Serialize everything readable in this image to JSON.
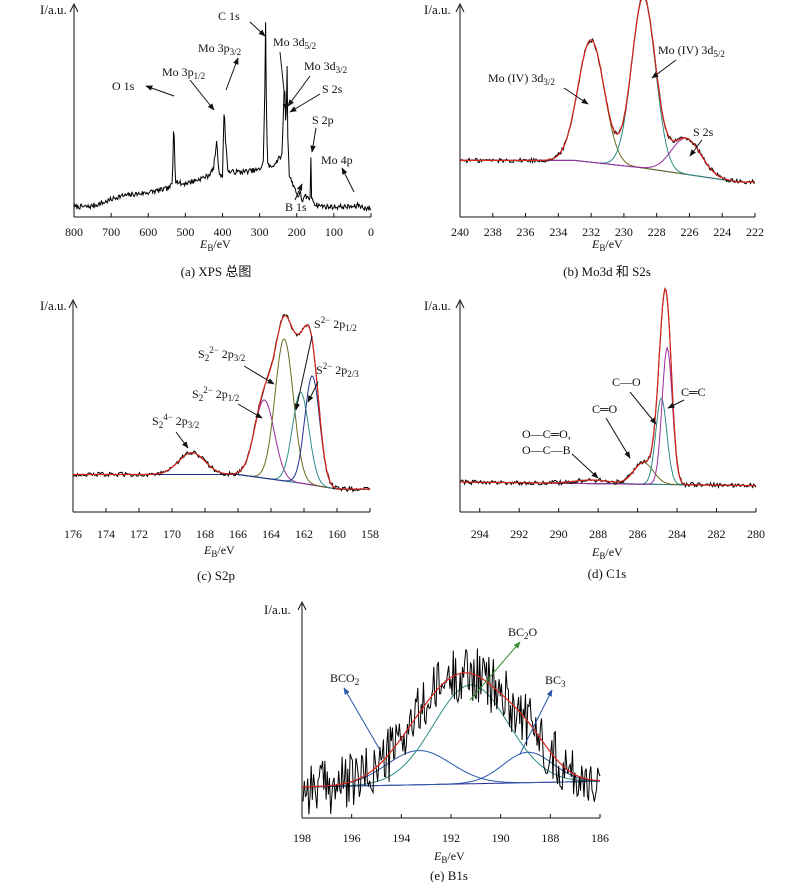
{
  "chart_data": [
    {
      "id": "a",
      "type": "line",
      "caption": "(a) XPS 总图",
      "ylabel": "I/a.u.",
      "xlabel": "E_B/eV",
      "xlim": [
        800,
        0
      ],
      "x_ticks": [
        800,
        700,
        600,
        500,
        400,
        300,
        200,
        100,
        0
      ],
      "series": [
        {
          "color": "#000000",
          "x": [
            800,
            760,
            720,
            680,
            640,
            600,
            570,
            545,
            535,
            532,
            530,
            527,
            510,
            470,
            440,
            425,
            416,
            414,
            410,
            400,
            397,
            395,
            393,
            385,
            350,
            300,
            290,
            285,
            284,
            283,
            279,
            270,
            260,
            240,
            236,
            233,
            230,
            228,
            226,
            224,
            220,
            200,
            195,
            191,
            188,
            184,
            178,
            163,
            162,
            160,
            150,
            120,
            90,
            60,
            40,
            35,
            25,
            10,
            0
          ],
          "y": [
            0.05,
            0.05,
            0.07,
            0.1,
            0.11,
            0.12,
            0.13,
            0.14,
            0.16,
            0.42,
            0.4,
            0.18,
            0.16,
            0.18,
            0.2,
            0.23,
            0.36,
            0.34,
            0.22,
            0.2,
            0.42,
            0.56,
            0.4,
            0.22,
            0.22,
            0.23,
            0.27,
            0.7,
            0.96,
            0.68,
            0.26,
            0.24,
            0.26,
            0.3,
            0.5,
            0.68,
            0.48,
            0.52,
            0.74,
            0.4,
            0.2,
            0.12,
            0.08,
            0.14,
            0.1,
            0.07,
            0.1,
            0.09,
            0.28,
            0.1,
            0.06,
            0.05,
            0.05,
            0.05,
            0.05,
            0.06,
            0.05,
            0.04,
            0.04
          ]
        }
      ],
      "annotations": [
        {
          "text": "O 1s",
          "x": 532
        },
        {
          "text": "Mo 3p1/2",
          "x": 414
        },
        {
          "text": "Mo 3p3/2",
          "x": 395
        },
        {
          "text": "C 1s",
          "x": 284
        },
        {
          "text": "Mo 3d5/2",
          "x": 228
        },
        {
          "text": "Mo 3d3/2",
          "x": 232
        },
        {
          "text": "S 2s",
          "x": 226
        },
        {
          "text": "S 2p",
          "x": 162
        },
        {
          "text": "B 1s",
          "x": 191
        },
        {
          "text": "Mo 4p",
          "x": 35
        }
      ]
    },
    {
      "id": "b",
      "type": "line",
      "caption": "(b) Mo3d 和 S2s",
      "ylabel": "I/a.u.",
      "xlabel": "E_B/eV",
      "xlim": [
        240,
        222
      ],
      "x_ticks": [
        240,
        238,
        236,
        234,
        232,
        230,
        228,
        226,
        224,
        222
      ],
      "baseline": {
        "x": [
          240,
          233,
          229,
          226,
          223
        ],
        "y": [
          0.22,
          0.22,
          0.18,
          0.14,
          0.1
        ]
      },
      "peaks": [
        {
          "center": 232.0,
          "height": 0.68,
          "width": 0.8,
          "color": "#6b6b1e"
        },
        {
          "center": 228.8,
          "height": 0.95,
          "width": 0.72,
          "color": "#2e8b86"
        },
        {
          "center": 226.2,
          "height": 0.2,
          "width": 0.9,
          "color": "#9b2c9b"
        }
      ],
      "envelope_color": "#d8261c",
      "raw_color": "#000000",
      "annotations": [
        {
          "text": "Mo (IV) 3d3/2",
          "x": 232.0
        },
        {
          "text": "Mo (IV) 3d5/2",
          "x": 228.8
        },
        {
          "text": "S 2s",
          "x": 226.2
        }
      ]
    },
    {
      "id": "c",
      "type": "line",
      "caption": "(c) S2p",
      "ylabel": "I/a.u.",
      "xlabel": "E_B/eV",
      "xlim": [
        176,
        158
      ],
      "x_ticks": [
        176,
        174,
        172,
        170,
        168,
        166,
        164,
        162,
        160,
        158
      ],
      "baseline": {
        "x": [
          176,
          166,
          162,
          160,
          158
        ],
        "y": [
          0.14,
          0.14,
          0.09,
          0.06,
          0.06
        ]
      },
      "peaks": [
        {
          "center": 168.8,
          "height": 0.12,
          "width": 0.8,
          "color": "#2e8b86"
        },
        {
          "center": 164.4,
          "height": 0.43,
          "width": 0.6,
          "color": "#9b2c9b"
        },
        {
          "center": 163.2,
          "height": 0.78,
          "width": 0.55,
          "color": "#6b6b1e"
        },
        {
          "center": 162.2,
          "height": 0.5,
          "width": 0.5,
          "color": "#2e8b86"
        },
        {
          "center": 161.5,
          "height": 0.6,
          "width": 0.45,
          "color": "#1f2f8f"
        }
      ],
      "envelope_color": "#d8261c",
      "raw_color": "#000000",
      "annotations": [
        {
          "text": "S2 4− 2p3/2",
          "x": 168.8
        },
        {
          "text": "S2 2− 2p1/2",
          "x": 164.4
        },
        {
          "text": "S2 2− 2p3/2",
          "x": 163.2
        },
        {
          "text": "S2− 2p1/2",
          "x": 162.2
        },
        {
          "text": "S2− 2p2/3",
          "x": 161.5
        }
      ]
    },
    {
      "id": "d",
      "type": "line",
      "caption": "(d) C1s",
      "ylabel": "I/a.u.",
      "xlabel": "E_B/eV",
      "xlim": [
        295,
        280
      ],
      "x_ticks": [
        294,
        292,
        290,
        288,
        286,
        284,
        282,
        280
      ],
      "baseline": {
        "x": [
          295,
          280
        ],
        "y": [
          0.1,
          0.08
        ]
      },
      "peaks": [
        {
          "center": 288.3,
          "height": 0.02,
          "width": 0.9,
          "color": "#2e8b86"
        },
        {
          "center": 285.7,
          "height": 0.12,
          "width": 0.5,
          "color": "#6b6b1e"
        },
        {
          "center": 284.8,
          "height": 0.48,
          "width": 0.28,
          "color": "#2e8b86"
        },
        {
          "center": 284.5,
          "height": 0.76,
          "width": 0.26,
          "color": "#9b2c9b"
        }
      ],
      "envelope_color": "#d8261c",
      "raw_color": "#000000",
      "annotations": [
        {
          "text": "O—C═O,",
          "x": 288.3
        },
        {
          "text": "O—C—B",
          "x": 288.3
        },
        {
          "text": "C═O",
          "x": 285.7
        },
        {
          "text": "C—O",
          "x": 284.8
        },
        {
          "text": "C═C",
          "x": 284.5
        }
      ]
    },
    {
      "id": "e",
      "type": "line",
      "caption": "(e) B1s",
      "ylabel": "I/a.u.",
      "xlabel": "E_B/eV",
      "xlim": [
        198,
        186
      ],
      "x_ticks": [
        198,
        196,
        194,
        192,
        190,
        188,
        186
      ],
      "baseline": {
        "x": [
          198,
          186
        ],
        "y": [
          0.1,
          0.13
        ]
      },
      "peaks": [
        {
          "center": 193.3,
          "height": 0.18,
          "width": 1.3,
          "color": "#2a55a8"
        },
        {
          "center": 191.2,
          "height": 0.52,
          "width": 1.5,
          "color": "#2e8b86"
        },
        {
          "center": 188.9,
          "height": 0.16,
          "width": 1.0,
          "color": "#2a55a8"
        }
      ],
      "envelope_color": "#d8261c",
      "raw_color": "#000000",
      "annotations": [
        {
          "text": "BCO2",
          "x": 193.3
        },
        {
          "text": "BC2O",
          "x": 191.2
        },
        {
          "text": "BC3",
          "x": 188.9
        }
      ]
    }
  ]
}
